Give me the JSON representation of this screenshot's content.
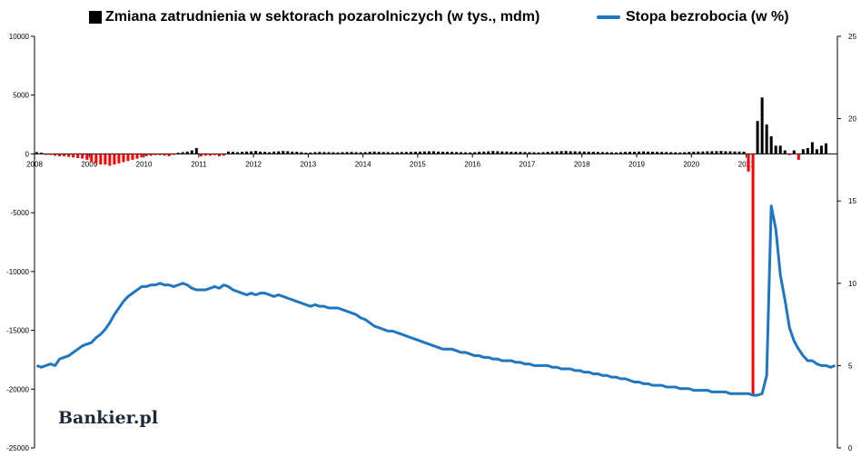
{
  "chart_data": {
    "type": "bar+line",
    "legend": [
      {
        "name": "Zmiana zatrudnienia w sektorach pozarolniczych (w tys., mdm)",
        "type": "bar"
      },
      {
        "name": "Stopa bezrobocia (w %)",
        "type": "line"
      }
    ],
    "legend_placement": "top",
    "grid": false,
    "colors": {
      "bar_positive": "#000000",
      "bar_negative": "#ff0000",
      "line": "#1f77c2"
    },
    "y_left": {
      "ylim": [
        -25000,
        10000
      ],
      "ticks": [
        10000,
        5000,
        0,
        -5000,
        -10000,
        -15000,
        -20000,
        -25000
      ]
    },
    "y_right": {
      "ylim": [
        0,
        25
      ],
      "ticks": [
        25,
        20,
        15,
        10,
        5,
        0
      ]
    },
    "x_labels": [
      "2008",
      "2009",
      "2010",
      "2011",
      "2012",
      "2013",
      "2014",
      "2015",
      "2016",
      "2017",
      "2018",
      "2019",
      "2020",
      "2021"
    ],
    "series": [
      {
        "name": "Zmiana zatrudnienia w sektorach pozarolniczych (w tys., mdm)",
        "axis": "left",
        "x_start": "2008-01",
        "values": [
          150,
          100,
          -50,
          -80,
          -150,
          -200,
          -200,
          -250,
          -300,
          -350,
          -400,
          -500,
          -700,
          -800,
          -900,
          -900,
          -1000,
          -900,
          -800,
          -700,
          -600,
          -500,
          -400,
          -300,
          -200,
          -150,
          -100,
          -100,
          -150,
          -200,
          -50,
          100,
          150,
          200,
          300,
          500,
          -200,
          -150,
          -150,
          -100,
          -200,
          -150,
          200,
          180,
          150,
          180,
          200,
          220,
          250,
          200,
          180,
          150,
          200,
          220,
          250,
          230,
          200,
          180,
          150,
          100,
          120,
          150,
          170,
          160,
          150,
          140,
          130,
          150,
          160,
          170,
          150,
          140,
          150,
          180,
          200,
          170,
          160,
          150,
          140,
          150,
          160,
          170,
          180,
          190,
          200,
          210,
          220,
          230,
          200,
          190,
          180,
          170,
          160,
          150,
          140,
          130,
          150,
          180,
          200,
          220,
          250,
          230,
          210,
          200,
          190,
          180,
          170,
          160,
          150,
          140,
          130,
          150,
          180,
          200,
          220,
          240,
          250,
          230,
          220,
          210,
          200,
          190,
          180,
          170,
          160,
          150,
          140,
          130,
          150,
          170,
          180,
          190,
          200,
          210,
          200,
          190,
          180,
          170,
          160,
          150,
          140,
          130,
          150,
          170,
          190,
          200,
          210,
          220,
          230,
          240,
          250,
          230,
          220,
          210,
          200,
          190,
          -1500,
          -20500,
          2800,
          4800,
          2500,
          1500,
          700,
          700,
          300,
          -100,
          300,
          -500,
          400,
          500,
          1000,
          400,
          700,
          900
        ]
      },
      {
        "name": "Stopa bezrobocia (w %)",
        "axis": "right",
        "x_start": "2008-01",
        "values": [
          5.0,
          4.9,
          5.0,
          5.1,
          5.0,
          5.4,
          5.5,
          5.6,
          5.8,
          6.0,
          6.2,
          6.3,
          6.4,
          6.7,
          6.9,
          7.2,
          7.6,
          8.1,
          8.5,
          8.9,
          9.2,
          9.4,
          9.6,
          9.8,
          9.8,
          9.9,
          9.9,
          10.0,
          9.9,
          9.9,
          9.8,
          9.9,
          10.0,
          9.9,
          9.7,
          9.6,
          9.6,
          9.6,
          9.7,
          9.8,
          9.7,
          9.9,
          9.8,
          9.6,
          9.5,
          9.4,
          9.3,
          9.4,
          9.3,
          9.4,
          9.4,
          9.3,
          9.2,
          9.3,
          9.2,
          9.1,
          9.0,
          8.9,
          8.8,
          8.7,
          8.6,
          8.7,
          8.6,
          8.6,
          8.5,
          8.5,
          8.5,
          8.4,
          8.3,
          8.2,
          8.1,
          7.9,
          7.8,
          7.6,
          7.4,
          7.3,
          7.2,
          7.1,
          7.1,
          7.0,
          6.9,
          6.8,
          6.7,
          6.6,
          6.5,
          6.4,
          6.3,
          6.2,
          6.1,
          6.0,
          6.0,
          6.0,
          5.9,
          5.8,
          5.8,
          5.7,
          5.6,
          5.6,
          5.5,
          5.5,
          5.4,
          5.4,
          5.3,
          5.3,
          5.3,
          5.2,
          5.2,
          5.1,
          5.1,
          5.0,
          5.0,
          5.0,
          5.0,
          4.9,
          4.9,
          4.8,
          4.8,
          4.8,
          4.7,
          4.7,
          4.6,
          4.6,
          4.5,
          4.5,
          4.4,
          4.4,
          4.3,
          4.3,
          4.2,
          4.2,
          4.1,
          4.0,
          4.0,
          3.9,
          3.9,
          3.8,
          3.8,
          3.8,
          3.7,
          3.7,
          3.7,
          3.6,
          3.6,
          3.6,
          3.5,
          3.5,
          3.5,
          3.5,
          3.4,
          3.4,
          3.4,
          3.4,
          3.3,
          3.3,
          3.3,
          3.3,
          3.3,
          3.2,
          3.2,
          3.3,
          4.4,
          14.7,
          13.3,
          10.5,
          9.0,
          7.3,
          6.5,
          6.0,
          5.6,
          5.3,
          5.3,
          5.1,
          5.0,
          5.0,
          4.9,
          5.0
        ]
      }
    ]
  },
  "watermark": "Bankier.pl"
}
